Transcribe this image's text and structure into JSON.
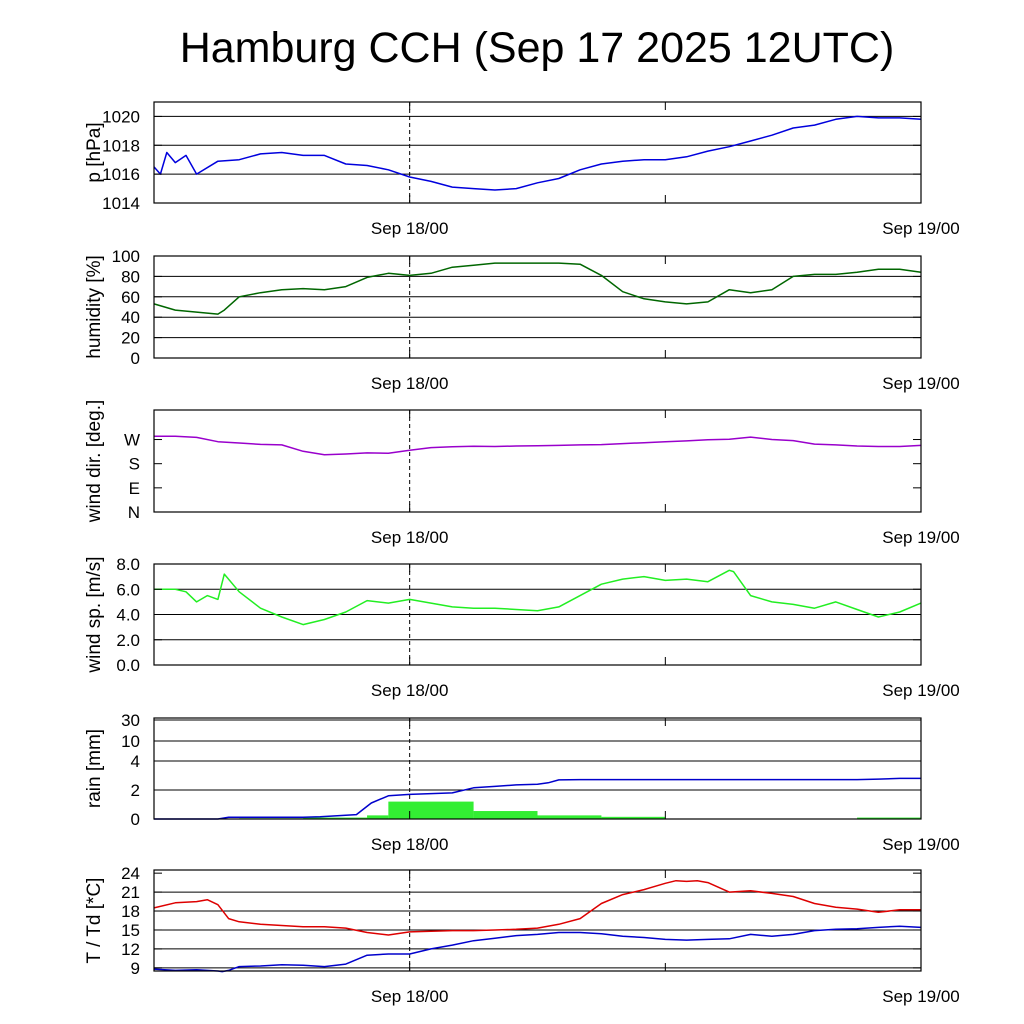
{
  "title": "Hamburg CCH (Sep 17 2025 12UTC)",
  "chart_data": [
    {
      "type": "line",
      "id": "pressure",
      "ylabel": "p [hPa]",
      "ylim": [
        1014,
        1021
      ],
      "yticks": [
        1014,
        1016,
        1018,
        1020
      ],
      "ytick_labels": [
        "1014",
        "1016",
        "1018",
        "1020"
      ],
      "hlines": [
        1016,
        1018,
        1020
      ],
      "grid": true,
      "xtick_labels": [
        "Sep 18/00",
        "Sep 19/00"
      ],
      "color": "#0000dd",
      "series": [
        {
          "x": [
            0,
            0.3,
            0.6,
            1,
            1.5,
            2,
            3,
            4,
            5,
            6,
            7,
            8,
            9,
            10,
            11,
            12,
            13,
            14,
            15,
            16,
            17,
            18,
            19,
            20,
            21,
            22,
            23,
            24,
            25,
            26,
            27,
            28,
            29,
            30,
            31,
            32,
            33,
            34,
            35,
            36
          ],
          "y": [
            1016.5,
            1016.0,
            1017.5,
            1016.8,
            1017.3,
            1016.0,
            1016.9,
            1017.0,
            1017.4,
            1017.5,
            1017.3,
            1017.3,
            1016.7,
            1016.6,
            1016.3,
            1015.8,
            1015.5,
            1015.1,
            1015.0,
            1014.9,
            1015.0,
            1015.4,
            1015.7,
            1016.3,
            1016.7,
            1016.9,
            1017.0,
            1017.0,
            1017.2,
            1017.6,
            1017.9,
            1018.3,
            1018.7,
            1019.2,
            1019.4,
            1019.8,
            1020.0,
            1019.9,
            1019.9,
            1019.8
          ]
        }
      ]
    },
    {
      "type": "line",
      "id": "humidity",
      "ylabel": "humidity [%]",
      "ylim": [
        0,
        100
      ],
      "yticks": [
        0,
        20,
        40,
        60,
        80,
        100
      ],
      "ytick_labels": [
        "0",
        "20",
        "40",
        "60",
        "80",
        "100"
      ],
      "hlines": [
        20,
        40,
        60,
        80
      ],
      "grid": true,
      "xtick_labels": [
        "Sep 18/00",
        "Sep 19/00"
      ],
      "color": "#006600",
      "series": [
        {
          "x": [
            0,
            1,
            2,
            3,
            3.3,
            4,
            5,
            6,
            7,
            8,
            9,
            10,
            11,
            12,
            13,
            14,
            15,
            16,
            17,
            18,
            19,
            20,
            21,
            22,
            23,
            24,
            25,
            26,
            27,
            28,
            29,
            30,
            31,
            32,
            33,
            34,
            35,
            36
          ],
          "y": [
            53,
            47,
            45,
            43,
            47,
            60,
            64,
            67,
            68,
            67,
            70,
            79,
            83,
            81,
            83,
            89,
            91,
            93,
            93,
            93,
            93,
            92,
            81,
            65,
            58,
            55,
            53,
            55,
            67,
            64,
            67,
            80,
            82,
            82,
            84,
            87,
            87,
            84
          ]
        }
      ]
    },
    {
      "type": "line",
      "id": "wind-direction",
      "ylabel": "wind dir. [deg.]",
      "ylim": [
        0,
        380
      ],
      "yticks": [
        0,
        90,
        180,
        270
      ],
      "ytick_labels": [
        "N",
        "E",
        "S",
        "W"
      ],
      "hlines": [],
      "grid": false,
      "xtick_labels": [
        "Sep 18/00",
        "Sep 19/00"
      ],
      "color": "#9900cc",
      "series": [
        {
          "x": [
            0,
            1,
            2,
            3,
            4,
            5,
            6,
            7,
            8,
            9,
            10,
            11,
            12,
            13,
            14,
            15,
            16,
            17,
            18,
            19,
            20,
            21,
            22,
            23,
            24,
            25,
            26,
            27,
            28,
            29,
            30,
            31,
            32,
            33,
            34,
            35,
            36
          ],
          "y": [
            282,
            282,
            278,
            262,
            257,
            252,
            250,
            226,
            213,
            216,
            220,
            219,
            230,
            240,
            243,
            245,
            244,
            246,
            247,
            248,
            250,
            251,
            255,
            258,
            262,
            265,
            269,
            271,
            279,
            270,
            266,
            253,
            250,
            246,
            244,
            244,
            248
          ]
        }
      ]
    },
    {
      "type": "line",
      "id": "wind-speed",
      "ylabel": "wind sp. [m/s]",
      "ylim": [
        0,
        8
      ],
      "yticks": [
        0,
        2,
        4,
        6,
        8
      ],
      "ytick_labels": [
        "0.0",
        "2.0",
        "4.0",
        "6.0",
        "8.0"
      ],
      "hlines": [
        2,
        4,
        6
      ],
      "grid": true,
      "xtick_labels": [
        "Sep 18/00",
        "Sep 19/00"
      ],
      "color": "#22ee22",
      "series": [
        {
          "x": [
            0,
            1,
            1.5,
            2,
            2.5,
            3,
            3.3,
            4,
            5,
            6,
            7,
            8,
            9,
            10,
            11,
            12,
            13,
            14,
            15,
            16,
            17,
            18,
            19,
            20,
            21,
            22,
            23,
            24,
            25,
            26,
            27,
            27.2,
            28,
            29,
            30,
            31,
            32,
            33,
            34,
            35,
            36
          ],
          "y": [
            6.0,
            6.0,
            5.8,
            5.0,
            5.5,
            5.2,
            7.2,
            5.8,
            4.5,
            3.8,
            3.2,
            3.6,
            4.2,
            5.1,
            4.9,
            5.2,
            4.9,
            4.6,
            4.5,
            4.5,
            4.4,
            4.3,
            4.6,
            5.5,
            6.4,
            6.8,
            7.0,
            6.7,
            6.8,
            6.6,
            7.5,
            7.4,
            5.5,
            5.0,
            4.8,
            4.5,
            5.0,
            4.4,
            3.8,
            4.2,
            4.9
          ]
        }
      ]
    },
    {
      "type": "bar",
      "id": "rain",
      "ylabel": "rain [mm]",
      "scale": "nonlinear",
      "yticks": [
        0,
        2,
        4,
        10,
        30
      ],
      "ytick_labels": [
        "0",
        "2",
        "4",
        "10",
        "30"
      ],
      "hlines": [
        2,
        4,
        10,
        30
      ],
      "grid": true,
      "xtick_labels": [
        "Sep 18/00",
        "Sep 19/00"
      ],
      "bar_color": "#33ee33",
      "line_color": "#0000cc",
      "bars": {
        "x_start": [
          4,
          7,
          10,
          11,
          15,
          18,
          21,
          24,
          27,
          30,
          33
        ],
        "x_end": [
          7,
          10,
          11,
          15,
          18,
          21,
          24,
          27,
          30,
          33,
          36
        ],
        "values": [
          0.05,
          0.1,
          0.25,
          1.2,
          0.55,
          0.25,
          0.15,
          0.0,
          0.0,
          0.0,
          0.1
        ]
      },
      "series": [
        {
          "name": "",
          "x": [
            0,
            3,
            3.5,
            7,
            7.8,
            9.5,
            10.2,
            11,
            12,
            13,
            14,
            15,
            16,
            17,
            18,
            18.5,
            19,
            20,
            21,
            22,
            23,
            24,
            25,
            26,
            27,
            28,
            29,
            30,
            31,
            32,
            33,
            34,
            35,
            36
          ],
          "y": [
            0,
            0,
            0.12,
            0.12,
            0.16,
            0.3,
            1.1,
            1.6,
            1.7,
            1.75,
            1.8,
            2.15,
            2.25,
            2.35,
            2.4,
            2.5,
            2.7,
            2.72,
            2.72,
            2.72,
            2.72,
            2.72,
            2.72,
            2.72,
            2.72,
            2.72,
            2.72,
            2.72,
            2.72,
            2.72,
            2.72,
            2.75,
            2.8,
            2.8
          ]
        }
      ]
    },
    {
      "type": "line",
      "id": "temperature",
      "ylabel": "T / Td [*C]",
      "ylim": [
        8.5,
        24.5
      ],
      "yticks": [
        9,
        12,
        15,
        18,
        21,
        24
      ],
      "ytick_labels": [
        "9",
        "12",
        "15",
        "18",
        "21",
        "24"
      ],
      "hlines": [
        9,
        12,
        15,
        18,
        21
      ],
      "grid": true,
      "xtick_labels": [
        "Sep 18/00",
        "Sep 19/00"
      ],
      "series": [
        {
          "name": "",
          "color": "#dd0000",
          "x": [
            0,
            1,
            2,
            2.5,
            3,
            3.5,
            4,
            5,
            6,
            7,
            8,
            9,
            10,
            11,
            12,
            13,
            14,
            15,
            16,
            17,
            18,
            19,
            20,
            21,
            22,
            23,
            24,
            24.5,
            25,
            25.5,
            26,
            27,
            28,
            29,
            30,
            31,
            32,
            33,
            34,
            35,
            36
          ],
          "y": [
            18.5,
            19.3,
            19.5,
            19.8,
            19.0,
            16.8,
            16.3,
            15.9,
            15.7,
            15.5,
            15.5,
            15.3,
            14.6,
            14.2,
            14.7,
            14.8,
            14.9,
            14.9,
            15.0,
            15.1,
            15.3,
            15.9,
            16.8,
            19.2,
            20.6,
            21.4,
            22.4,
            22.8,
            22.7,
            22.8,
            22.5,
            21.0,
            21.2,
            20.8,
            20.3,
            19.2,
            18.6,
            18.3,
            17.8,
            18.2,
            18.2
          ]
        },
        {
          "name": "",
          "color": "#0000cc",
          "x": [
            0,
            1,
            2,
            3,
            3.2,
            3.5,
            4,
            5,
            6,
            7,
            8,
            9,
            10,
            11,
            12,
            13,
            14,
            15,
            16,
            17,
            18,
            19,
            20,
            21,
            22,
            23,
            24,
            25,
            26,
            27,
            28,
            29,
            30,
            31,
            32,
            33,
            34,
            35,
            36
          ],
          "y": [
            8.8,
            8.6,
            8.7,
            8.5,
            8.4,
            8.6,
            9.2,
            9.3,
            9.5,
            9.4,
            9.2,
            9.6,
            11.0,
            11.2,
            11.2,
            12.0,
            12.6,
            13.3,
            13.7,
            14.1,
            14.3,
            14.6,
            14.6,
            14.4,
            14.0,
            13.8,
            13.5,
            13.4,
            13.5,
            13.6,
            14.3,
            14.0,
            14.3,
            14.9,
            15.1,
            15.2,
            15.4,
            15.6,
            15.4
          ]
        }
      ]
    }
  ]
}
